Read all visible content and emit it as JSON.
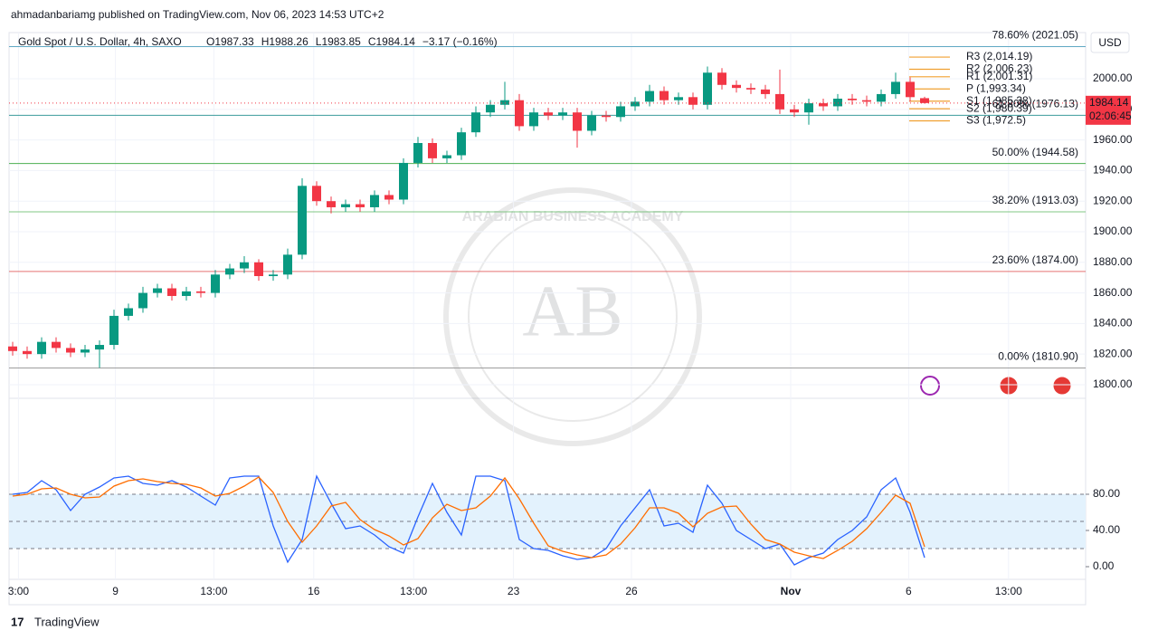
{
  "header": {
    "publisher": "ahmadanbariamg published on TradingView.com, Nov 06, 2023 14:53 UTC+2",
    "currency": "USD",
    "brand": "TradingView",
    "watermark": "AB",
    "watermark_text": "ARABIAN BUSINESS ACADEMY"
  },
  "chart_data": [
    {
      "type": "candlestick",
      "title": "Gold Spot / U.S. Dollar, 4h, SAXO",
      "legend_items": [
        "O1987.33",
        "H1988.26",
        "L1983.85",
        "C1984.14",
        "−3.17 (−0.16%)"
      ],
      "up_color": "#089981",
      "down_color": "#f23645",
      "open": [
        1825,
        1822,
        1820,
        1828,
        1824,
        1821,
        1823,
        1826,
        1845,
        1850,
        1860,
        1863,
        1858,
        1861,
        1860,
        1872,
        1876,
        1880,
        1871,
        1872,
        1885,
        1930,
        1920,
        1916,
        1918,
        1916,
        1924,
        1921,
        1945,
        1958,
        1948,
        1950,
        1965,
        1978,
        1983,
        1986,
        1969,
        1978,
        1976,
        1978,
        1966,
        1976,
        1975,
        1982,
        1985,
        1992,
        1986,
        1988,
        1983,
        2004,
        1996,
        1994,
        1993,
        1990,
        1980,
        1978,
        1984,
        1982,
        1987,
        1986,
        1985,
        1990,
        1998,
        1987.33
      ],
      "high": [
        1828,
        1825,
        1831,
        1831,
        1827,
        1826,
        1829,
        1849,
        1853,
        1864,
        1866,
        1866,
        1864,
        1864,
        1875,
        1879,
        1884,
        1882,
        1875,
        1889,
        1935,
        1933,
        1923,
        1921,
        1921,
        1927,
        1927,
        1948,
        1962,
        1961,
        1953,
        1968,
        1982,
        1986,
        1998,
        1990,
        1981,
        1981,
        1981,
        1981,
        1979,
        1979,
        1985,
        1988,
        1996,
        1995,
        1991,
        1991,
        2008,
        2007,
        1999,
        1997,
        1996,
        2006,
        1983,
        1987,
        1987,
        1990,
        1990,
        1989,
        1993,
        2004,
        2001,
        1988.26
      ],
      "low": [
        1819,
        1817,
        1817,
        1821,
        1818,
        1818,
        1811,
        1823,
        1842,
        1847,
        1857,
        1855,
        1855,
        1857,
        1857,
        1869,
        1873,
        1868,
        1868,
        1869,
        1882,
        1917,
        1912,
        1913,
        1913,
        1913,
        1918,
        1918,
        1942,
        1945,
        1945,
        1947,
        1962,
        1975,
        1980,
        1966,
        1966,
        1973,
        1973,
        1955,
        1963,
        1972,
        1972,
        1979,
        1982,
        1983,
        1983,
        1980,
        1980,
        1993,
        1991,
        1990,
        1987,
        1977,
        1975,
        1970,
        1979,
        1979,
        1983,
        1982,
        1982,
        1987,
        1985,
        1983.85
      ],
      "close": [
        1822,
        1820,
        1828,
        1824,
        1821,
        1823,
        1826,
        1845,
        1850,
        1860,
        1863,
        1858,
        1861,
        1860,
        1872,
        1876,
        1880,
        1871,
        1872,
        1885,
        1930,
        1920,
        1916,
        1918,
        1916,
        1924,
        1921,
        1945,
        1958,
        1948,
        1950,
        1965,
        1978,
        1983,
        1986,
        1969,
        1978,
        1976,
        1978,
        1966,
        1976,
        1975,
        1982,
        1985,
        1992,
        1986,
        1988,
        1983,
        2004,
        1996,
        1994,
        1993,
        1990,
        1980,
        1978,
        1984,
        1982,
        1987,
        1986,
        1985,
        1990,
        1998,
        1988,
        1984.14
      ],
      "last_price": {
        "value": 1984.14,
        "label": "1984.14",
        "countdown": "02:06:45",
        "color": "#f23645"
      },
      "fib_levels": [
        {
          "value": 2021.05,
          "label": "78.60% (2021.05)",
          "color": "#5fa8c4"
        },
        {
          "value": 1976.13,
          "label": "61.80% (1976.13)",
          "color": "#3b9c9c"
        },
        {
          "value": 1944.58,
          "label": "50.00% (1944.58)",
          "color": "#4caf50"
        },
        {
          "value": 1913.03,
          "label": "38.20% (1913.03)",
          "color": "#81c784"
        },
        {
          "value": 1874.0,
          "label": "23.60% (1874.00)",
          "color": "#e57373"
        },
        {
          "value": 1810.9,
          "label": "0.00% (1810.90)",
          "color": "#9e9e9e"
        }
      ],
      "pivots": [
        {
          "value": 2014.19,
          "label": "R3 (2,014.19)"
        },
        {
          "value": 2006.23,
          "label": "R2 (2,006.23)"
        },
        {
          "value": 2001.31,
          "label": "R1 (2,001.31)"
        },
        {
          "value": 1993.34,
          "label": "P (1,993.34)"
        },
        {
          "value": 1985.38,
          "label": "S1 (1,985.38)"
        },
        {
          "value": 1980.39,
          "label": "S2 (1,980.39)"
        },
        {
          "value": 1972.5,
          "label": "S3 (1,972.5)"
        }
      ],
      "pivot_color": "#f0a030",
      "xlim": [
        -0.25,
        74.125
      ],
      "ylim": [
        1791.1,
        2030.2
      ],
      "yticks": [
        {
          "value": 1800,
          "label": "1800.00"
        },
        {
          "value": 1820,
          "label": "1820.00"
        },
        {
          "value": 1840,
          "label": "1840.00"
        },
        {
          "value": 1860,
          "label": "1860.00"
        },
        {
          "value": 1880,
          "label": "1880.00"
        },
        {
          "value": 1900,
          "label": "1900.00"
        },
        {
          "value": 1920,
          "label": "1920.00"
        },
        {
          "value": 1940,
          "label": "1940.00"
        },
        {
          "value": 1960,
          "label": "1960.00"
        },
        {
          "value": 1980,
          "label": "1980.00"
        },
        {
          "value": 2000,
          "label": "2000.00"
        }
      ],
      "xticks": [
        {
          "value": 0.4,
          "label": "3:00"
        },
        {
          "value": 7.1,
          "label": "9"
        },
        {
          "value": 13.9,
          "label": "13:00"
        },
        {
          "value": 20.8,
          "label": "16"
        },
        {
          "value": 27.7,
          "label": "13:00"
        },
        {
          "value": 34.6,
          "label": "23"
        },
        {
          "value": 42.75,
          "label": "26"
        },
        {
          "value": 53.75,
          "label": "Nov"
        },
        {
          "value": 61.9,
          "label": "6"
        },
        {
          "value": 68.8,
          "label": "13:00"
        }
      ]
    },
    {
      "type": "line",
      "xlim": [
        -0.25,
        74.125
      ],
      "ylim": [
        -14,
        136
      ],
      "yticks": [
        {
          "value": 0,
          "label": "0.00"
        },
        {
          "value": 40,
          "label": "40.00"
        },
        {
          "value": 80,
          "label": "80.00"
        }
      ],
      "bands": [
        80,
        50,
        20
      ],
      "band_color": "#e3f2fd",
      "series": [
        {
          "color": "#2962ff",
          "values": [
            80,
            82,
            95,
            85,
            62,
            80,
            88,
            98,
            100,
            92,
            90,
            95,
            88,
            78,
            68,
            98,
            100,
            100,
            45,
            5,
            30,
            100,
            70,
            42,
            45,
            35,
            22,
            15,
            55,
            92,
            60,
            35,
            100,
            100,
            95,
            30,
            20,
            18,
            12,
            8,
            10,
            20,
            45,
            65,
            85,
            45,
            48,
            38,
            90,
            70,
            40,
            30,
            20,
            25,
            2,
            10,
            15,
            30,
            40,
            55,
            85,
            98,
            60,
            10
          ]
        },
        {
          "color": "#ff6d00",
          "values": [
            78,
            80,
            86,
            87,
            80,
            76,
            77,
            89,
            95,
            97,
            94,
            92,
            91,
            87,
            78,
            81,
            89,
            99,
            82,
            50,
            27,
            45,
            67,
            71,
            52,
            41,
            34,
            24,
            31,
            54,
            69,
            62,
            65,
            78,
            98,
            75,
            48,
            23,
            17,
            13,
            10,
            13,
            25,
            43,
            65,
            65,
            59,
            44,
            59,
            66,
            67,
            47,
            30,
            25,
            16,
            12,
            9,
            18,
            28,
            42,
            60,
            79,
            70,
            22
          ]
        }
      ]
    }
  ]
}
